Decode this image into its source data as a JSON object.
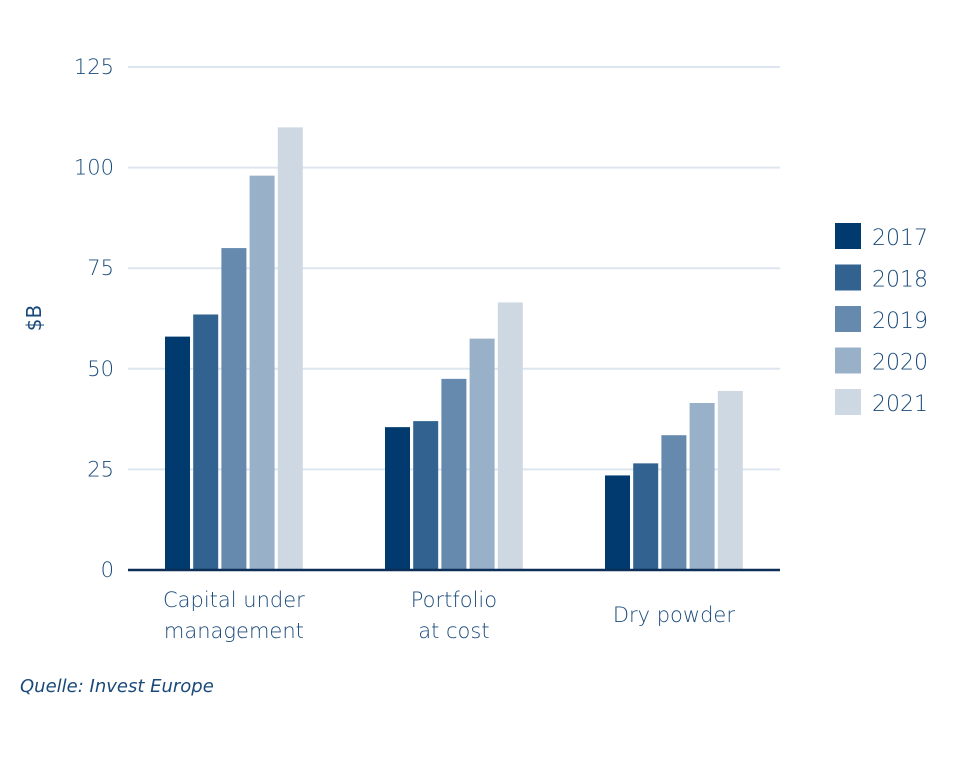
{
  "chart_data": {
    "type": "bar",
    "ylabel": "$B",
    "ylim": [
      0,
      125
    ],
    "yticks": [
      0,
      25,
      50,
      75,
      100,
      125
    ],
    "grid": true,
    "legend_position": "right",
    "categories": [
      [
        "Capital under",
        "management"
      ],
      [
        "Portfolio",
        "at cost"
      ],
      [
        "Dry powder"
      ]
    ],
    "series": [
      {
        "name": "2017",
        "color": "#003a6e",
        "values": [
          58,
          35.5,
          23.5
        ]
      },
      {
        "name": "2018",
        "color": "#32628f",
        "values": [
          63.5,
          37,
          26.5
        ]
      },
      {
        "name": "2019",
        "color": "#6689ae",
        "values": [
          80,
          47.5,
          33.5
        ]
      },
      {
        "name": "2020",
        "color": "#98b0c8",
        "values": [
          98,
          57.5,
          41.5
        ]
      },
      {
        "name": "2021",
        "color": "#cdd8e3",
        "values": [
          110,
          66.5,
          44.5
        ]
      }
    ]
  },
  "source": "Quelle: Invest Europe"
}
